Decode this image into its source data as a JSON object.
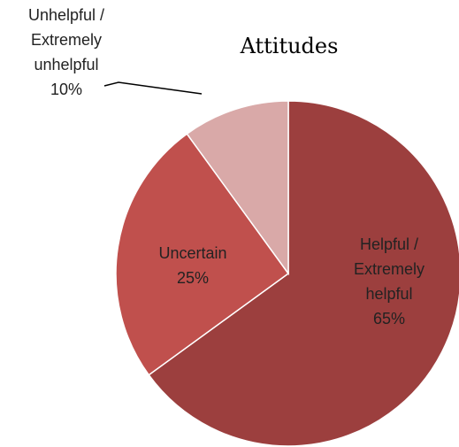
{
  "chart_data": {
    "type": "pie",
    "title": "Attitudes",
    "categories": [
      "Helpful / Extremely helpful",
      "Uncertain",
      "Unhelpful / Extremely unhelpful"
    ],
    "values": [
      65,
      25,
      10
    ],
    "value_labels": [
      "65%",
      "25%",
      "10%"
    ],
    "colors": [
      "#9c3f3e",
      "#c0504d",
      "#d9a9a8"
    ]
  }
}
